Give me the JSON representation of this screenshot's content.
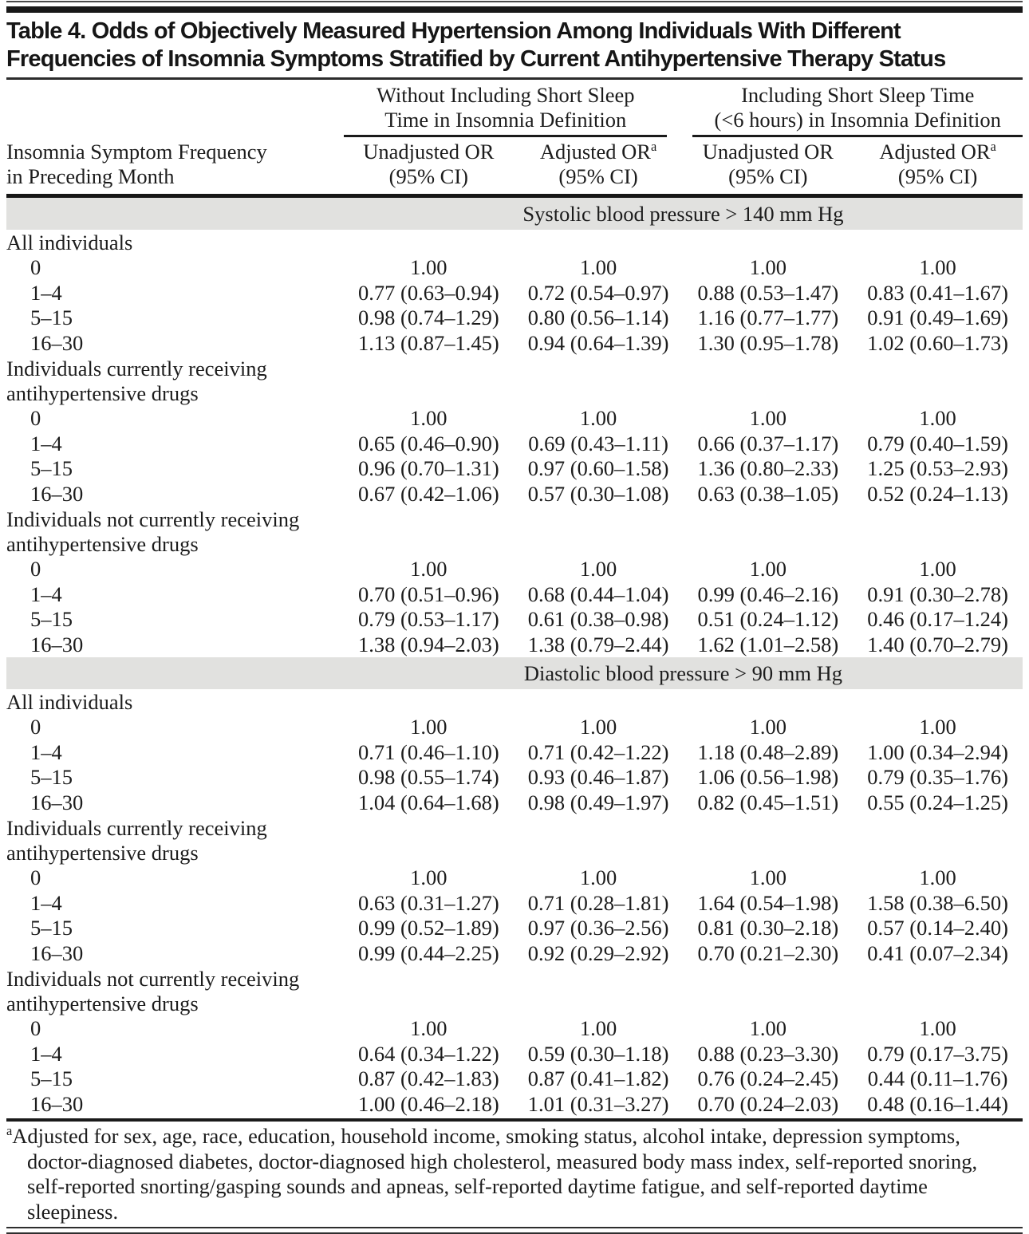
{
  "title_lines": [
    "Table 4. Odds of Objectively Measured Hypertension Among Individuals With Different",
    "Frequencies of Insomnia Symptoms Stratified by Current Antihypertensive Therapy Status"
  ],
  "header": {
    "row_label": {
      "line1": "Insomnia Symptom Frequency",
      "line2": "in Preceding Month"
    },
    "groups": [
      {
        "line1": "Without Including Short Sleep",
        "line2": "Time in Insomnia Definition"
      },
      {
        "line1": "Including Short Sleep Time",
        "line2": "(<6 hours) in Insomnia Definition"
      }
    ],
    "columns": [
      {
        "title": "Unadjusted OR",
        "sup": "",
        "sub": "(95% CI)"
      },
      {
        "title": "Adjusted OR",
        "sup": "a",
        "sub": "(95% CI)"
      },
      {
        "title": "Unadjusted OR",
        "sup": "",
        "sub": "(95% CI)"
      },
      {
        "title": "Adjusted OR",
        "sup": "a",
        "sub": "(95% CI)"
      }
    ]
  },
  "sections": [
    {
      "band": "Systolic blood pressure > 140 mm Hg",
      "groups": [
        {
          "label_lines": [
            "All individuals"
          ],
          "rows": [
            {
              "freq": "0",
              "values": [
                "1.00",
                "1.00",
                "1.00",
                "1.00"
              ]
            },
            {
              "freq": "1–4",
              "values": [
                "0.77 (0.63–0.94)",
                "0.72 (0.54–0.97)",
                "0.88 (0.53–1.47)",
                "0.83 (0.41–1.67)"
              ]
            },
            {
              "freq": "5–15",
              "values": [
                "0.98 (0.74–1.29)",
                "0.80 (0.56–1.14)",
                "1.16 (0.77–1.77)",
                "0.91 (0.49–1.69)"
              ]
            },
            {
              "freq": "16–30",
              "values": [
                "1.13 (0.87–1.45)",
                "0.94 (0.64–1.39)",
                "1.30 (0.95–1.78)",
                "1.02 (0.60–1.73)"
              ]
            }
          ]
        },
        {
          "label_lines": [
            "Individuals currently receiving",
            "antihypertensive drugs"
          ],
          "rows": [
            {
              "freq": "0",
              "values": [
                "1.00",
                "1.00",
                "1.00",
                "1.00"
              ]
            },
            {
              "freq": "1–4",
              "values": [
                "0.65 (0.46–0.90)",
                "0.69 (0.43–1.11)",
                "0.66 (0.37–1.17)",
                "0.79 (0.40–1.59)"
              ]
            },
            {
              "freq": "5–15",
              "values": [
                "0.96 (0.70–1.31)",
                "0.97 (0.60–1.58)",
                "1.36 (0.80–2.33)",
                "1.25 (0.53–2.93)"
              ]
            },
            {
              "freq": "16–30",
              "values": [
                "0.67 (0.42–1.06)",
                "0.57 (0.30–1.08)",
                "0.63 (0.38–1.05)",
                "0.52 (0.24–1.13)"
              ]
            }
          ]
        },
        {
          "label_lines": [
            "Individuals not currently receiving",
            "antihypertensive drugs"
          ],
          "rows": [
            {
              "freq": "0",
              "values": [
                "1.00",
                "1.00",
                "1.00",
                "1.00"
              ]
            },
            {
              "freq": "1–4",
              "values": [
                "0.70 (0.51–0.96)",
                "0.68 (0.44–1.04)",
                "0.99 (0.46–2.16)",
                "0.91 (0.30–2.78)"
              ]
            },
            {
              "freq": "5–15",
              "values": [
                "0.79 (0.53–1.17)",
                "0.61 (0.38–0.98)",
                "0.51 (0.24–1.12)",
                "0.46 (0.17–1.24)"
              ]
            },
            {
              "freq": "16–30",
              "values": [
                "1.38 (0.94–2.03)",
                "1.38 (0.79–2.44)",
                "1.62 (1.01–2.58)",
                "1.40 (0.70–2.79)"
              ]
            }
          ]
        }
      ]
    },
    {
      "band": "Diastolic blood pressure > 90 mm Hg",
      "groups": [
        {
          "label_lines": [
            "All individuals"
          ],
          "rows": [
            {
              "freq": "0",
              "values": [
                "1.00",
                "1.00",
                "1.00",
                "1.00"
              ]
            },
            {
              "freq": "1–4",
              "values": [
                "0.71 (0.46–1.10)",
                "0.71 (0.42–1.22)",
                "1.18 (0.48–2.89)",
                "1.00 (0.34–2.94)"
              ]
            },
            {
              "freq": "5–15",
              "values": [
                "0.98 (0.55–1.74)",
                "0.93 (0.46–1.87)",
                "1.06 (0.56–1.98)",
                "0.79 (0.35–1.76)"
              ]
            },
            {
              "freq": "16–30",
              "values": [
                "1.04 (0.64–1.68)",
                "0.98 (0.49–1.97)",
                "0.82 (0.45–1.51)",
                "0.55 (0.24–1.25)"
              ]
            }
          ]
        },
        {
          "label_lines": [
            "Individuals currently receiving",
            "antihypertensive drugs"
          ],
          "rows": [
            {
              "freq": "0",
              "values": [
                "1.00",
                "1.00",
                "1.00",
                "1.00"
              ]
            },
            {
              "freq": "1–4",
              "values": [
                "0.63 (0.31–1.27)",
                "0.71 (0.28–1.81)",
                "1.64 (0.54–1.98)",
                "1.58 (0.38–6.50)"
              ]
            },
            {
              "freq": "5–15",
              "values": [
                "0.99 (0.52–1.89)",
                "0.97 (0.36–2.56)",
                "0.81 (0.30–2.18)",
                "0.57 (0.14–2.40)"
              ]
            },
            {
              "freq": "16–30",
              "values": [
                "0.99 (0.44–2.25)",
                "0.92 (0.29–2.92)",
                "0.70 (0.21–2.30)",
                "0.41 (0.07–2.34)"
              ]
            }
          ]
        },
        {
          "label_lines": [
            "Individuals not currently receiving",
            "antihypertensive drugs"
          ],
          "rows": [
            {
              "freq": "0",
              "values": [
                "1.00",
                "1.00",
                "1.00",
                "1.00"
              ]
            },
            {
              "freq": "1–4",
              "values": [
                "0.64 (0.34–1.22)",
                "0.59 (0.30–1.18)",
                "0.88 (0.23–3.30)",
                "0.79 (0.17–3.75)"
              ]
            },
            {
              "freq": "5–15",
              "values": [
                "0.87 (0.42–1.83)",
                "0.87 (0.41–1.82)",
                "0.76 (0.24–2.45)",
                "0.44 (0.11–1.76)"
              ]
            },
            {
              "freq": "16–30",
              "values": [
                "1.00 (0.46–2.18)",
                "1.01 (0.31–3.27)",
                "0.70 (0.24–2.03)",
                "0.48 (0.16–1.44)"
              ]
            }
          ]
        }
      ]
    }
  ],
  "footnote": {
    "marker": "a",
    "text": "Adjusted for sex, age, race, education, household income, smoking status, alcohol intake, depression symptoms, doctor-diagnosed diabetes, doctor-diagnosed high cholesterol, measured body mass index, self-reported snoring, self-reported snorting/gasping sounds and apneas, self-reported daytime fatigue, and self-reported daytime sleepiness."
  },
  "colors": {
    "band_background": "#e1e1df",
    "rule_color": "#1a1a1a",
    "text_color": "#1c1c1c"
  }
}
